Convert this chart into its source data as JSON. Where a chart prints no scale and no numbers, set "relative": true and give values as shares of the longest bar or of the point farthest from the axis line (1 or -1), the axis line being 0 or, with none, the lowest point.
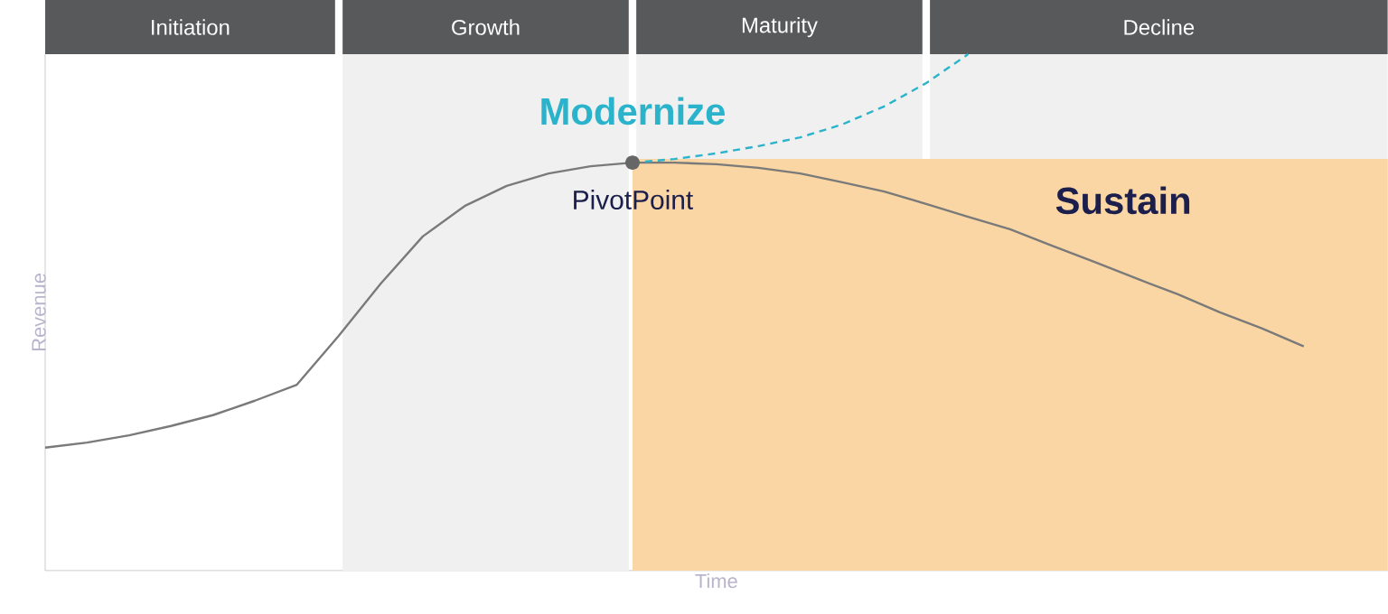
{
  "chart_data": {
    "type": "line",
    "relative": true,
    "xlabel": "Time",
    "ylabel": "Revenue",
    "tick_labels": false,
    "categories": [
      null,
      null,
      null,
      null,
      null,
      null,
      null,
      null,
      null,
      null,
      null,
      null,
      null,
      null,
      null,
      null,
      null,
      null,
      null,
      null,
      null,
      null,
      null,
      null,
      null,
      null,
      null,
      null,
      null,
      null,
      null,
      null,
      null
    ],
    "series": [
      {
        "color": "#7a7a7a",
        "values": [
          0.238,
          0.248,
          0.262,
          0.28,
          0.301,
          0.329,
          0.36,
          0.455,
          0.556,
          0.647,
          0.706,
          0.745,
          0.769,
          0.783,
          0.79,
          0.79,
          0.787,
          0.78,
          0.769,
          0.752,
          0.734,
          0.71,
          0.685,
          0.661,
          0.629,
          0.598,
          0.566,
          0.535,
          0.5,
          0.469,
          0.434,
          null,
          null
        ]
      },
      {
        "name": "Modernize",
        "color": "#2bb3cc",
        "line_style": "dashed",
        "values": [
          null,
          null,
          null,
          null,
          null,
          null,
          null,
          null,
          null,
          null,
          null,
          null,
          null,
          null,
          0.79,
          0.797,
          0.808,
          0.822,
          0.839,
          0.864,
          0.899,
          0.944,
          1.0,
          null,
          null,
          null,
          null,
          null,
          null,
          null,
          null,
          null,
          null
        ]
      },
      {
        "name": "Sustain",
        "type": "area",
        "color": "#f9d6a4",
        "values": [
          null,
          null,
          null,
          null,
          null,
          null,
          null,
          null,
          null,
          null,
          null,
          null,
          null,
          null,
          0.797,
          0.797,
          0.797,
          0.797,
          0.797,
          0.797,
          0.797,
          0.797,
          0.797,
          0.797,
          0.797,
          0.797,
          0.797,
          0.797,
          0.797,
          0.797,
          0.797,
          0.797,
          0.797
        ]
      }
    ],
    "annotations": [
      "Initiation",
      "Growth",
      "Maturity",
      "Decline",
      "PivotPoint"
    ]
  }
}
